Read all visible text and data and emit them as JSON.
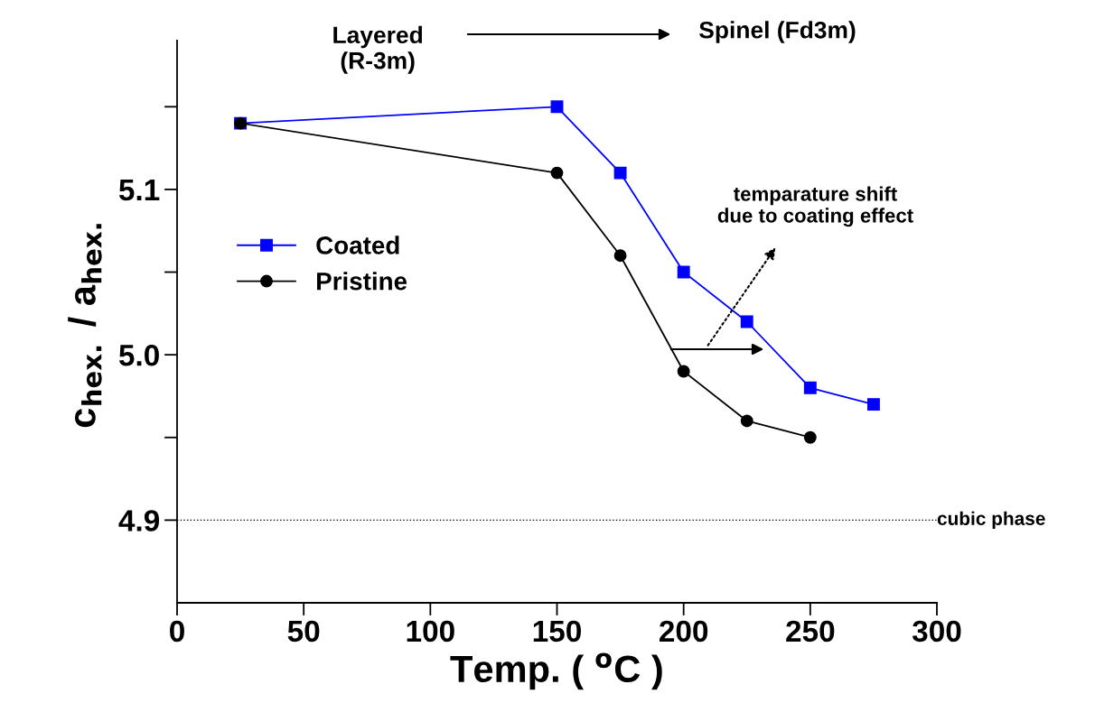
{
  "chart_data": {
    "type": "line",
    "xlabel": "Temp. ( $^{o}$C )",
    "ylabel": "c$_{hex.}$ / a$_{hex.}$",
    "series": [
      {
        "name": "Coated",
        "color": "#0000ff",
        "marker": "square",
        "x": [
          25,
          150,
          175,
          200,
          225,
          250,
          275
        ],
        "values": [
          5.14,
          5.15,
          5.11,
          5.05,
          5.02,
          4.98,
          4.97
        ]
      },
      {
        "name": "Pristine",
        "color": "#000000",
        "marker": "circle",
        "x": [
          25,
          150,
          175,
          200,
          225,
          250
        ],
        "values": [
          5.14,
          5.11,
          5.06,
          4.99,
          4.96,
          4.95
        ]
      }
    ],
    "xlim": [
      0,
      300
    ],
    "xticks": [
      0,
      50,
      100,
      150,
      200,
      250,
      300
    ],
    "ylim": [
      4.85,
      5.19
    ],
    "yticks": [
      {
        "value": 4.9,
        "label": "4.9"
      },
      {
        "value": 4.95,
        "label": null
      },
      {
        "value": 5.0,
        "label": "5.0"
      },
      {
        "value": 5.05,
        "label": null
      },
      {
        "value": 5.1,
        "label": "5.1"
      },
      {
        "value": 5.15,
        "label": null
      }
    ],
    "ref_lines": [
      {
        "axis": "y",
        "value": 4.9,
        "label": "cubic phase",
        "color": "#000000",
        "line_style": "dotted"
      }
    ],
    "annotations": [
      "Layered\n(R-3m)",
      "Spinel (Fd3m)",
      "temparature shift\ndue to coating effect"
    ],
    "legend": "left",
    "grid": false,
    "line_style": "solid"
  }
}
